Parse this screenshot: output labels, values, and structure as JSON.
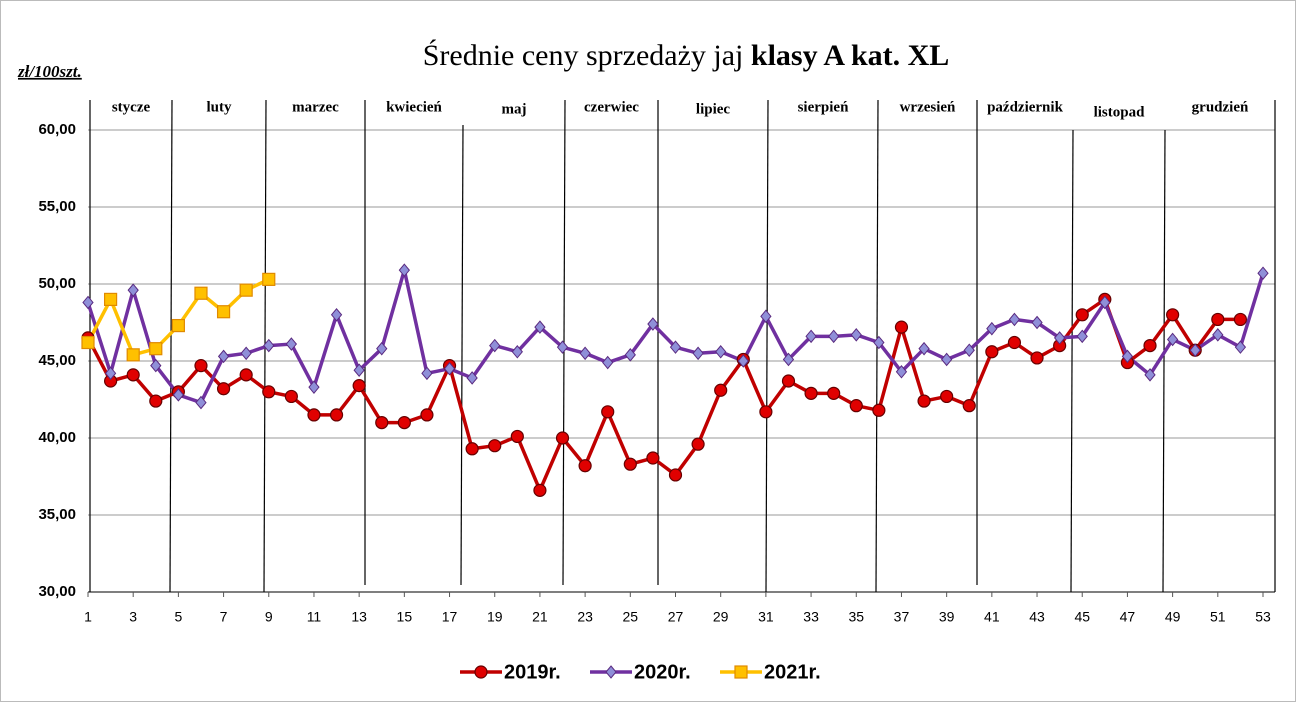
{
  "chart_data": {
    "type": "line",
    "title": {
      "plain": "Średnie ceny sprzedaży jaj ",
      "bold": "klasy A kat.  XL"
    },
    "y_unit": "zł/100szt.",
    "months": [
      "stycze",
      "luty",
      "marzec",
      "kwiecień",
      "maj",
      "czerwiec",
      "lipiec",
      "sierpień",
      "wrzesień",
      "październik",
      "listopad",
      "grudzień"
    ],
    "x": [
      1,
      2,
      3,
      4,
      5,
      6,
      7,
      8,
      9,
      10,
      11,
      12,
      13,
      14,
      15,
      16,
      17,
      18,
      19,
      20,
      21,
      22,
      23,
      24,
      25,
      26,
      27,
      28,
      29,
      30,
      31,
      32,
      33,
      34,
      35,
      36,
      37,
      38,
      39,
      40,
      41,
      42,
      43,
      44,
      45,
      46,
      47,
      48,
      49,
      50,
      51,
      52,
      53
    ],
    "xlim": [
      1,
      53
    ],
    "xticks": [
      1,
      3,
      5,
      7,
      9,
      11,
      13,
      15,
      17,
      19,
      21,
      23,
      25,
      27,
      29,
      31,
      33,
      35,
      37,
      39,
      41,
      43,
      45,
      47,
      49,
      51,
      53
    ],
    "ylim": [
      30,
      60
    ],
    "yticks": [
      {
        "value": 30,
        "label": "30,00"
      },
      {
        "value": 35,
        "label": "35,00"
      },
      {
        "value": 40,
        "label": "40,00"
      },
      {
        "value": 45,
        "label": "45,00"
      },
      {
        "value": 50,
        "label": "50,00"
      },
      {
        "value": 55,
        "label": "55,00"
      },
      {
        "value": 60,
        "label": "60,00"
      }
    ],
    "grid": true,
    "legend": "bottom",
    "series": [
      {
        "name": "2019r.",
        "color": "#c00000",
        "marker": "circle",
        "marker_color": "#e00000",
        "values": [
          46.5,
          43.7,
          44.1,
          42.4,
          43.0,
          44.7,
          43.2,
          44.1,
          43.0,
          42.7,
          41.5,
          41.5,
          43.4,
          41.0,
          41.0,
          41.5,
          44.7,
          39.3,
          39.5,
          40.1,
          36.6,
          40.0,
          38.2,
          41.7,
          38.3,
          38.7,
          37.6,
          39.6,
          43.1,
          45.1,
          41.7,
          43.7,
          42.9,
          42.9,
          42.1,
          41.8,
          47.2,
          42.4,
          42.7,
          42.1,
          45.6,
          46.2,
          45.2,
          46.0,
          48.0,
          49.0,
          44.9,
          46.0,
          48.0,
          45.7,
          47.7,
          47.7,
          null
        ]
      },
      {
        "name": "2020r.",
        "color": "#7030a0",
        "marker": "diamond",
        "marker_color": "#8f8fd8",
        "values": [
          48.8,
          44.2,
          49.6,
          44.7,
          42.8,
          42.3,
          45.3,
          45.5,
          46.0,
          46.1,
          43.3,
          48.0,
          44.4,
          45.8,
          50.9,
          44.2,
          44.5,
          43.9,
          46.0,
          45.6,
          47.2,
          45.9,
          45.5,
          44.9,
          45.4,
          47.4,
          45.9,
          45.5,
          45.6,
          45.0,
          47.9,
          45.1,
          46.6,
          46.6,
          46.7,
          46.2,
          44.3,
          45.8,
          45.1,
          45.7,
          47.1,
          47.7,
          47.5,
          46.5,
          46.6,
          48.8,
          45.3,
          44.1,
          46.4,
          45.7,
          46.7,
          45.9,
          50.7
        ]
      },
      {
        "name": "2021r.",
        "color": "#ffc000",
        "marker": "square",
        "marker_color": "#ffc000",
        "values": [
          46.2,
          49.0,
          45.4,
          45.8,
          47.3,
          49.4,
          48.2,
          49.6,
          50.3,
          null,
          null,
          null,
          null,
          null,
          null,
          null,
          null,
          null,
          null,
          null,
          null,
          null,
          null,
          null,
          null,
          null,
          null,
          null,
          null,
          null,
          null,
          null,
          null,
          null,
          null,
          null,
          null,
          null,
          null,
          null,
          null,
          null,
          null,
          null,
          null,
          null,
          null,
          null,
          null,
          null,
          null,
          null,
          null
        ]
      }
    ]
  }
}
